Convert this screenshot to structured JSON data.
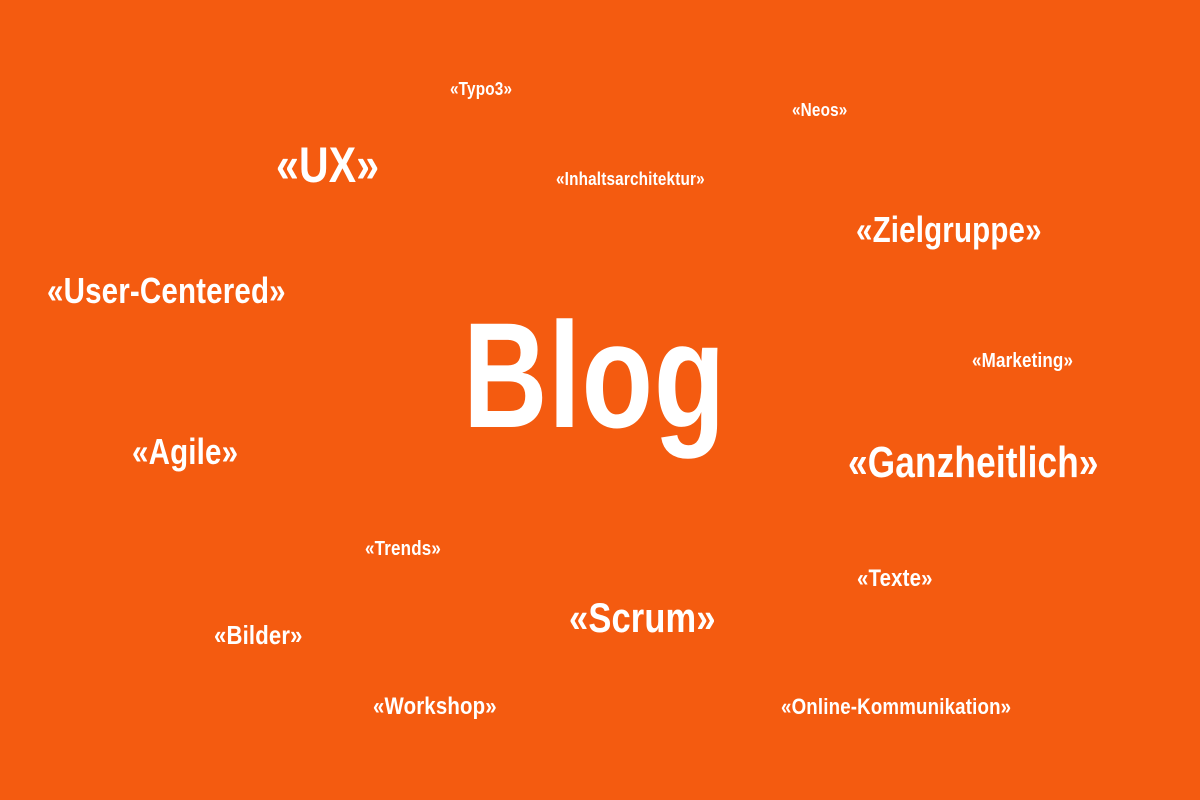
{
  "title": "Blog",
  "colors": {
    "background": "#f45b10",
    "text": "#ffffff"
  },
  "tags": {
    "typo3": "«Typo3»",
    "neos": "«Neos»",
    "ux": "«UX»",
    "inhaltsarchitektur": "«Inhaltsarchitektur»",
    "zielgruppe": "«Zielgruppe»",
    "user_centered": "«User-Centered»",
    "marketing": "«Marketing»",
    "agile": "«Agile»",
    "ganzheitlich": "«Ganzheitlich»",
    "trends": "«Trends»",
    "texte": "«Texte»",
    "scrum": "«Scrum»",
    "bilder": "«Bilder»",
    "workshop": "«Workshop»",
    "online_kommunikation": "«Online-Kommunikation»"
  }
}
